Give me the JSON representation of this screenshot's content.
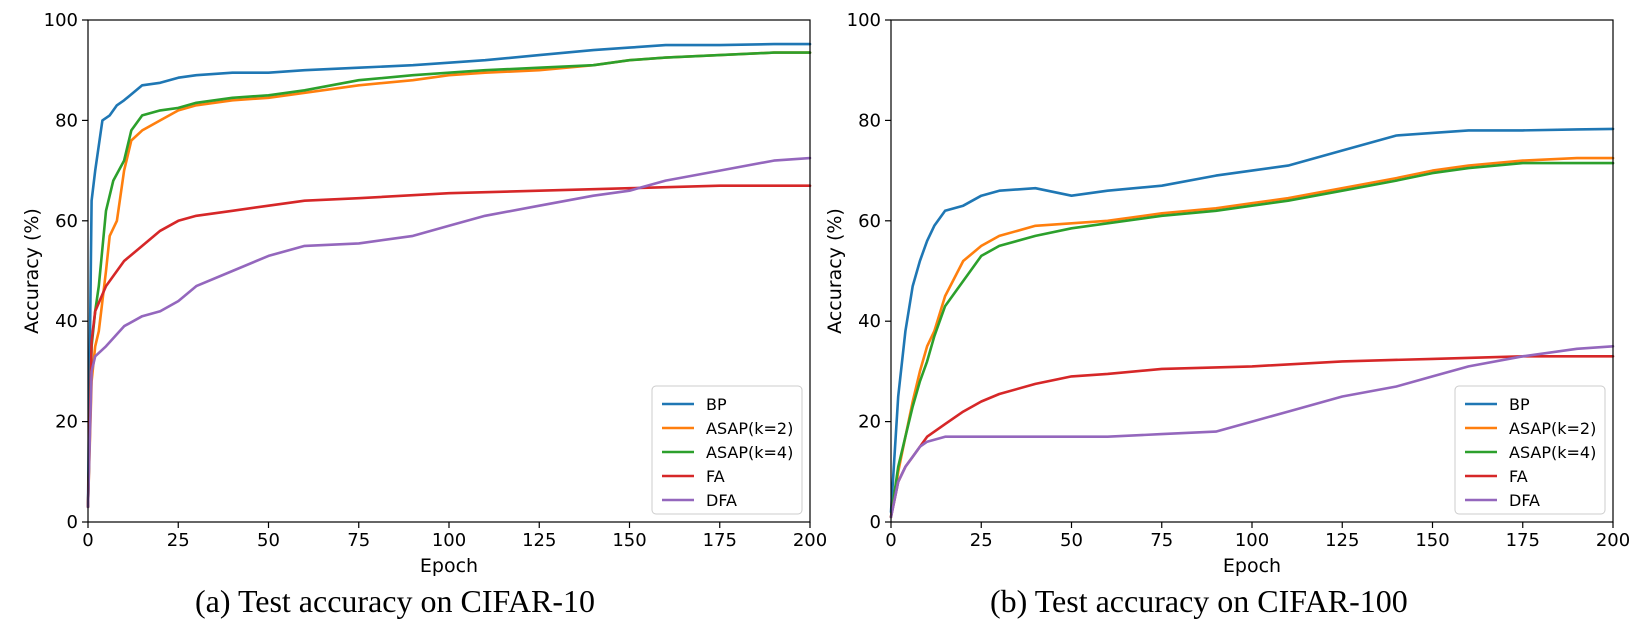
{
  "chart_data": [
    {
      "type": "line",
      "caption": "(a) Test accuracy on CIFAR-10",
      "xlabel": "Epoch",
      "ylabel": "Accuracy (%)",
      "xlim": [
        0,
        200
      ],
      "ylim": [
        0,
        100
      ],
      "xticks": [
        0,
        25,
        50,
        75,
        100,
        125,
        150,
        175,
        200
      ],
      "yticks": [
        0,
        20,
        40,
        60,
        80,
        100
      ],
      "legend_position": "bottom-right",
      "grid": false,
      "series": [
        {
          "name": "BP",
          "color": "#1f77b4",
          "x": [
            0,
            1,
            2,
            4,
            6,
            8,
            10,
            15,
            20,
            25,
            30,
            40,
            50,
            60,
            75,
            90,
            100,
            110,
            125,
            140,
            150,
            160,
            175,
            190,
            200
          ],
          "y": [
            3,
            64,
            70,
            80,
            81,
            83,
            84,
            87,
            87.5,
            88.5,
            89,
            89.5,
            89.5,
            90,
            90.5,
            91,
            91.5,
            92,
            93,
            94,
            94.5,
            95,
            95,
            95.2,
            95.2
          ]
        },
        {
          "name": "ASAP(k=2)",
          "color": "#ff7f0e",
          "x": [
            0,
            1,
            2,
            3,
            5,
            6,
            8,
            10,
            12,
            15,
            20,
            25,
            30,
            40,
            50,
            60,
            75,
            90,
            100,
            110,
            125,
            140,
            150,
            160,
            175,
            190,
            200
          ],
          "y": [
            3,
            28,
            35,
            38,
            50,
            57,
            60,
            70,
            76,
            78,
            80,
            82,
            83,
            84,
            84.5,
            85.5,
            87,
            88,
            89,
            89.5,
            90,
            91,
            92,
            92.5,
            93,
            93.5,
            93.5
          ]
        },
        {
          "name": "ASAP(k=4)",
          "color": "#2ca02c",
          "x": [
            0,
            1,
            2,
            3,
            5,
            7,
            10,
            12,
            15,
            20,
            25,
            30,
            40,
            50,
            60,
            75,
            90,
            100,
            110,
            125,
            140,
            150,
            160,
            175,
            190,
            200
          ],
          "y": [
            3,
            35,
            42,
            47,
            62,
            68,
            72,
            78,
            81,
            82,
            82.5,
            83.5,
            84.5,
            85,
            86,
            88,
            89,
            89.5,
            90,
            90.5,
            91,
            92,
            92.5,
            93,
            93.5,
            93.5
          ]
        },
        {
          "name": "FA",
          "color": "#d62728",
          "x": [
            0,
            1,
            2,
            5,
            10,
            15,
            20,
            25,
            30,
            40,
            50,
            60,
            75,
            100,
            125,
            150,
            175,
            200
          ],
          "y": [
            3,
            36,
            42,
            47,
            52,
            55,
            58,
            60,
            61,
            62,
            63,
            64,
            64.5,
            65.5,
            66,
            66.5,
            67,
            67
          ]
        },
        {
          "name": "DFA",
          "color": "#9467bd",
          "x": [
            0,
            1,
            2,
            5,
            10,
            15,
            20,
            25,
            30,
            40,
            50,
            60,
            75,
            90,
            100,
            110,
            125,
            140,
            150,
            160,
            175,
            190,
            200
          ],
          "y": [
            3,
            30,
            33,
            35,
            39,
            41,
            42,
            44,
            47,
            50,
            53,
            55,
            55.5,
            57,
            59,
            61,
            63,
            65,
            66,
            68,
            70,
            72,
            72.5
          ]
        }
      ]
    },
    {
      "type": "line",
      "caption": "(b) Test accuracy on CIFAR-100",
      "xlabel": "Epoch",
      "ylabel": "Accuracy (%)",
      "xlim": [
        0,
        200
      ],
      "ylim": [
        0,
        100
      ],
      "xticks": [
        0,
        25,
        50,
        75,
        100,
        125,
        150,
        175,
        200
      ],
      "yticks": [
        0,
        20,
        40,
        60,
        80,
        100
      ],
      "legend_position": "bottom-right",
      "grid": false,
      "series": [
        {
          "name": "BP",
          "color": "#1f77b4",
          "x": [
            0,
            2,
            4,
            6,
            8,
            10,
            12,
            15,
            20,
            25,
            30,
            40,
            50,
            60,
            75,
            90,
            100,
            110,
            125,
            140,
            150,
            160,
            175,
            190,
            200
          ],
          "y": [
            2,
            25,
            38,
            47,
            52,
            56,
            59,
            62,
            63,
            65,
            66,
            66.5,
            65,
            66,
            67,
            69,
            70,
            71,
            74,
            77,
            77.5,
            78,
            78,
            78.2,
            78.3
          ]
        },
        {
          "name": "ASAP(k=2)",
          "color": "#ff7f0e",
          "x": [
            0,
            2,
            4,
            6,
            8,
            10,
            12,
            15,
            20,
            25,
            30,
            40,
            50,
            60,
            75,
            90,
            100,
            110,
            125,
            140,
            150,
            160,
            175,
            190,
            200
          ],
          "y": [
            1,
            10,
            17,
            24,
            30,
            35,
            38,
            45,
            52,
            55,
            57,
            59,
            59.5,
            60,
            61.5,
            62.5,
            63.5,
            64.5,
            66.5,
            68.5,
            70,
            71,
            72,
            72.5,
            72.5
          ]
        },
        {
          "name": "ASAP(k=4)",
          "color": "#2ca02c",
          "x": [
            0,
            2,
            4,
            6,
            8,
            10,
            12,
            15,
            20,
            25,
            30,
            40,
            50,
            60,
            75,
            90,
            100,
            110,
            125,
            140,
            150,
            160,
            175,
            190,
            200
          ],
          "y": [
            1,
            11,
            17,
            23,
            28,
            32,
            37,
            43,
            48,
            53,
            55,
            57,
            58.5,
            59.5,
            61,
            62,
            63,
            64,
            66,
            68,
            69.5,
            70.5,
            71.5,
            71.5,
            71.5
          ]
        },
        {
          "name": "FA",
          "color": "#d62728",
          "x": [
            0,
            2,
            4,
            6,
            8,
            10,
            15,
            20,
            25,
            30,
            40,
            50,
            60,
            75,
            100,
            125,
            150,
            175,
            200
          ],
          "y": [
            1,
            8,
            11,
            13,
            15,
            17,
            19.5,
            22,
            24,
            25.5,
            27.5,
            29,
            29.5,
            30.5,
            31,
            32,
            32.5,
            33,
            33
          ]
        },
        {
          "name": "DFA",
          "color": "#9467bd",
          "x": [
            0,
            2,
            4,
            6,
            8,
            10,
            15,
            20,
            25,
            30,
            40,
            50,
            60,
            75,
            90,
            100,
            110,
            125,
            140,
            150,
            160,
            175,
            190,
            200
          ],
          "y": [
            1,
            8,
            11,
            13,
            15,
            16,
            17,
            17,
            17,
            17,
            17,
            17,
            17,
            17.5,
            18,
            20,
            22,
            25,
            27,
            29,
            31,
            33,
            34.5,
            35
          ]
        }
      ]
    }
  ]
}
